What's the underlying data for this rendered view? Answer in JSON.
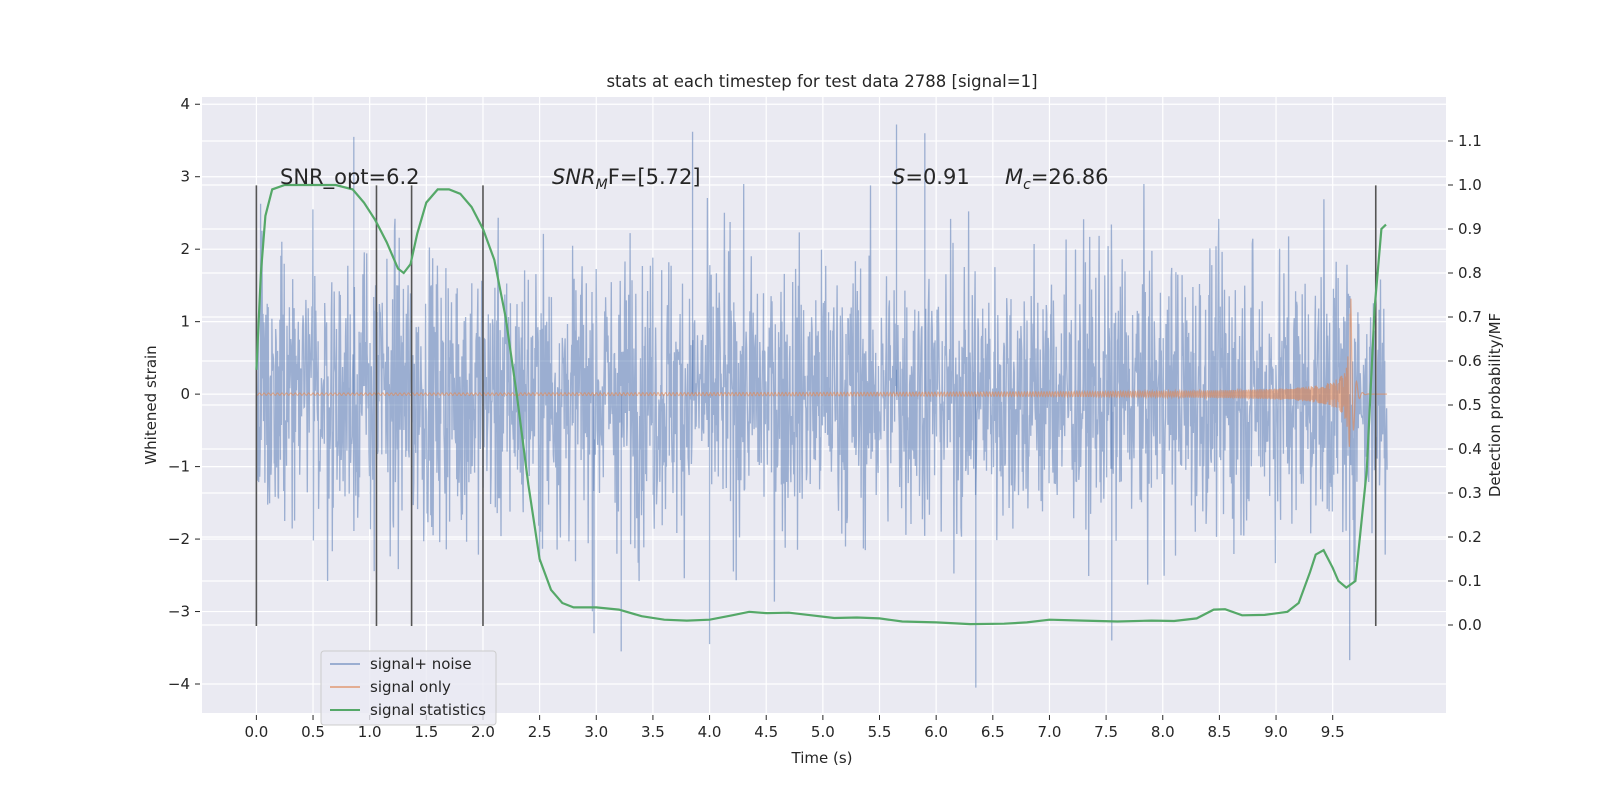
{
  "chart_data": {
    "type": "line",
    "title": "stats at each timestep for test data 2788 [signal=1]",
    "xlabel": "Time (s)",
    "ylabel": "Whitened strain",
    "ylabel_right": "Detection probability/MF",
    "xlim": [
      -0.48,
      10.5
    ],
    "ylim": [
      -4.4,
      4.1
    ],
    "ylim_right": [
      -0.2,
      1.2
    ],
    "x_ticks": [
      "0.0",
      "0.5",
      "1.0",
      "1.5",
      "2.0",
      "2.5",
      "3.0",
      "3.5",
      "4.0",
      "4.5",
      "5.0",
      "5.5",
      "6.0",
      "6.5",
      "7.0",
      "7.5",
      "8.0",
      "8.5",
      "9.0",
      "9.5"
    ],
    "y_ticks": [
      "4",
      "3",
      "2",
      "1",
      "0",
      "−1",
      "−2",
      "−3",
      "−4"
    ],
    "y_right_ticks": [
      "1.1",
      "1.0",
      "0.9",
      "0.8",
      "0.7",
      "0.6",
      "0.5",
      "0.4",
      "0.3",
      "0.2",
      "0.1",
      "0.0"
    ],
    "grid": true,
    "legend_placement": "lower-left",
    "annotations": {
      "snr_opt": "SNR_opt=6.2",
      "snr_mf_prefix": "SNR",
      "snr_mf_sub": "M",
      "snr_mf_suffix": "F=[5.72]",
      "s_prefix": "S",
      "s_suffix": "=0.91",
      "mc_prefix": "M",
      "mc_sub": "c",
      "mc_suffix": "=26.86"
    },
    "vertical_markers": [
      0.0,
      1.06,
      1.37,
      2.0,
      9.88
    ],
    "series": [
      {
        "name": "signal+ noise",
        "color": "#4c72b0",
        "description_kind": "dense-noise",
        "x_range": [
          0.0,
          9.98
        ],
        "envelope": [
          -2.5,
          2.5
        ],
        "peaks": [
          [
            0.86,
            3.55
          ],
          [
            3.85,
            3.62
          ],
          [
            5.65,
            3.72
          ],
          [
            5.9,
            3.6
          ],
          [
            6.35,
            -4.05
          ],
          [
            3.22,
            -3.55
          ],
          [
            4.0,
            -3.45
          ],
          [
            9.65,
            -3.67
          ],
          [
            7.55,
            -3.4
          ],
          [
            2.98,
            -3.3
          ]
        ]
      },
      {
        "name": "signal only",
        "color": "#dd8452",
        "description_kind": "chirp",
        "x_range": [
          0.0,
          9.98
        ],
        "merger_time": 9.66,
        "peak_amplitude": 1.35
      },
      {
        "name": "signal statistics",
        "color": "#55a868",
        "axis": "right",
        "points": [
          [
            0.0,
            0.58
          ],
          [
            0.04,
            0.8
          ],
          [
            0.08,
            0.93
          ],
          [
            0.14,
            0.99
          ],
          [
            0.25,
            1.0
          ],
          [
            0.5,
            1.0
          ],
          [
            0.7,
            1.0
          ],
          [
            0.85,
            0.99
          ],
          [
            0.95,
            0.96
          ],
          [
            1.05,
            0.92
          ],
          [
            1.15,
            0.87
          ],
          [
            1.25,
            0.81
          ],
          [
            1.3,
            0.8
          ],
          [
            1.36,
            0.82
          ],
          [
            1.42,
            0.89
          ],
          [
            1.5,
            0.96
          ],
          [
            1.6,
            0.99
          ],
          [
            1.7,
            0.99
          ],
          [
            1.8,
            0.98
          ],
          [
            1.9,
            0.95
          ],
          [
            2.0,
            0.9
          ],
          [
            2.1,
            0.83
          ],
          [
            2.2,
            0.7
          ],
          [
            2.3,
            0.52
          ],
          [
            2.4,
            0.32
          ],
          [
            2.5,
            0.15
          ],
          [
            2.6,
            0.08
          ],
          [
            2.7,
            0.05
          ],
          [
            2.8,
            0.04
          ],
          [
            3.0,
            0.04
          ],
          [
            3.2,
            0.035
          ],
          [
            3.4,
            0.02
          ],
          [
            3.6,
            0.012
          ],
          [
            3.8,
            0.01
          ],
          [
            4.0,
            0.012
          ],
          [
            4.2,
            0.022
          ],
          [
            4.35,
            0.03
          ],
          [
            4.5,
            0.027
          ],
          [
            4.7,
            0.028
          ],
          [
            4.9,
            0.022
          ],
          [
            5.1,
            0.016
          ],
          [
            5.3,
            0.017
          ],
          [
            5.5,
            0.015
          ],
          [
            5.7,
            0.008
          ],
          [
            6.0,
            0.006
          ],
          [
            6.3,
            0.002
          ],
          [
            6.6,
            0.003
          ],
          [
            6.8,
            0.006
          ],
          [
            7.0,
            0.012
          ],
          [
            7.3,
            0.01
          ],
          [
            7.6,
            0.008
          ],
          [
            7.9,
            0.01
          ],
          [
            8.1,
            0.009
          ],
          [
            8.3,
            0.015
          ],
          [
            8.45,
            0.035
          ],
          [
            8.55,
            0.036
          ],
          [
            8.7,
            0.022
          ],
          [
            8.9,
            0.023
          ],
          [
            9.1,
            0.03
          ],
          [
            9.2,
            0.05
          ],
          [
            9.3,
            0.12
          ],
          [
            9.35,
            0.16
          ],
          [
            9.42,
            0.17
          ],
          [
            9.5,
            0.13
          ],
          [
            9.55,
            0.1
          ],
          [
            9.62,
            0.085
          ],
          [
            9.7,
            0.1
          ],
          [
            9.8,
            0.35
          ],
          [
            9.87,
            0.72
          ],
          [
            9.93,
            0.9
          ],
          [
            9.97,
            0.91
          ]
        ]
      }
    ]
  }
}
